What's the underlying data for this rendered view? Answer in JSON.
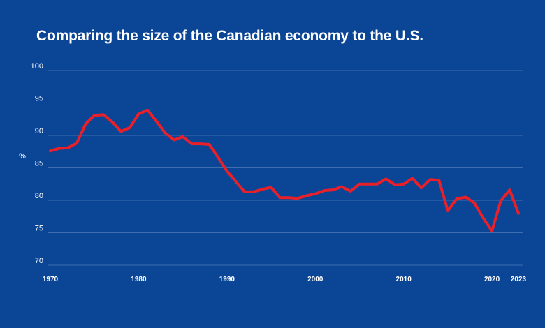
{
  "chart_data": {
    "type": "line",
    "title": "Comparing the size of the Canadian economy to the U.S.",
    "xlabel": "",
    "ylabel": "%",
    "ylim": [
      70,
      100
    ],
    "yticks": [
      70,
      75,
      80,
      85,
      90,
      95,
      100
    ],
    "xlim": [
      1970,
      2023
    ],
    "xticks": [
      1970,
      1980,
      1990,
      2000,
      2010,
      2020,
      2023
    ],
    "grid": true,
    "line_color": "#e8202a",
    "background_color": "#0a4596",
    "series": [
      {
        "x": [
          1970,
          1971,
          1972,
          1973,
          1974,
          1975,
          1976,
          1977,
          1978,
          1979,
          1980,
          1981,
          1982,
          1983,
          1984,
          1985,
          1986,
          1987,
          1988,
          1989,
          1990,
          1991,
          1992,
          1993,
          1994,
          1995,
          1996,
          1997,
          1998,
          1999,
          2000,
          2001,
          2002,
          2003,
          2004,
          2005,
          2006,
          2007,
          2008,
          2009,
          2010,
          2011,
          2012,
          2013,
          2014,
          2015,
          2016,
          2017,
          2018,
          2019,
          2020,
          2021,
          2022,
          2023
        ],
        "values": [
          87.6,
          88.0,
          88.1,
          88.8,
          91.8,
          93.1,
          93.2,
          92.1,
          90.6,
          91.2,
          93.3,
          93.9,
          92.2,
          90.4,
          89.3,
          89.8,
          88.7,
          88.7,
          88.6,
          86.6,
          84.5,
          82.9,
          81.3,
          81.3,
          81.7,
          82.0,
          80.4,
          80.4,
          80.3,
          80.7,
          81.0,
          81.5,
          81.6,
          82.1,
          81.4,
          82.5,
          82.5,
          82.5,
          83.3,
          82.4,
          82.5,
          83.4,
          81.9,
          83.2,
          83.1,
          78.4,
          80.2,
          80.5,
          79.6,
          77.3,
          75.3,
          79.9,
          81.6,
          78.0
        ]
      }
    ]
  }
}
